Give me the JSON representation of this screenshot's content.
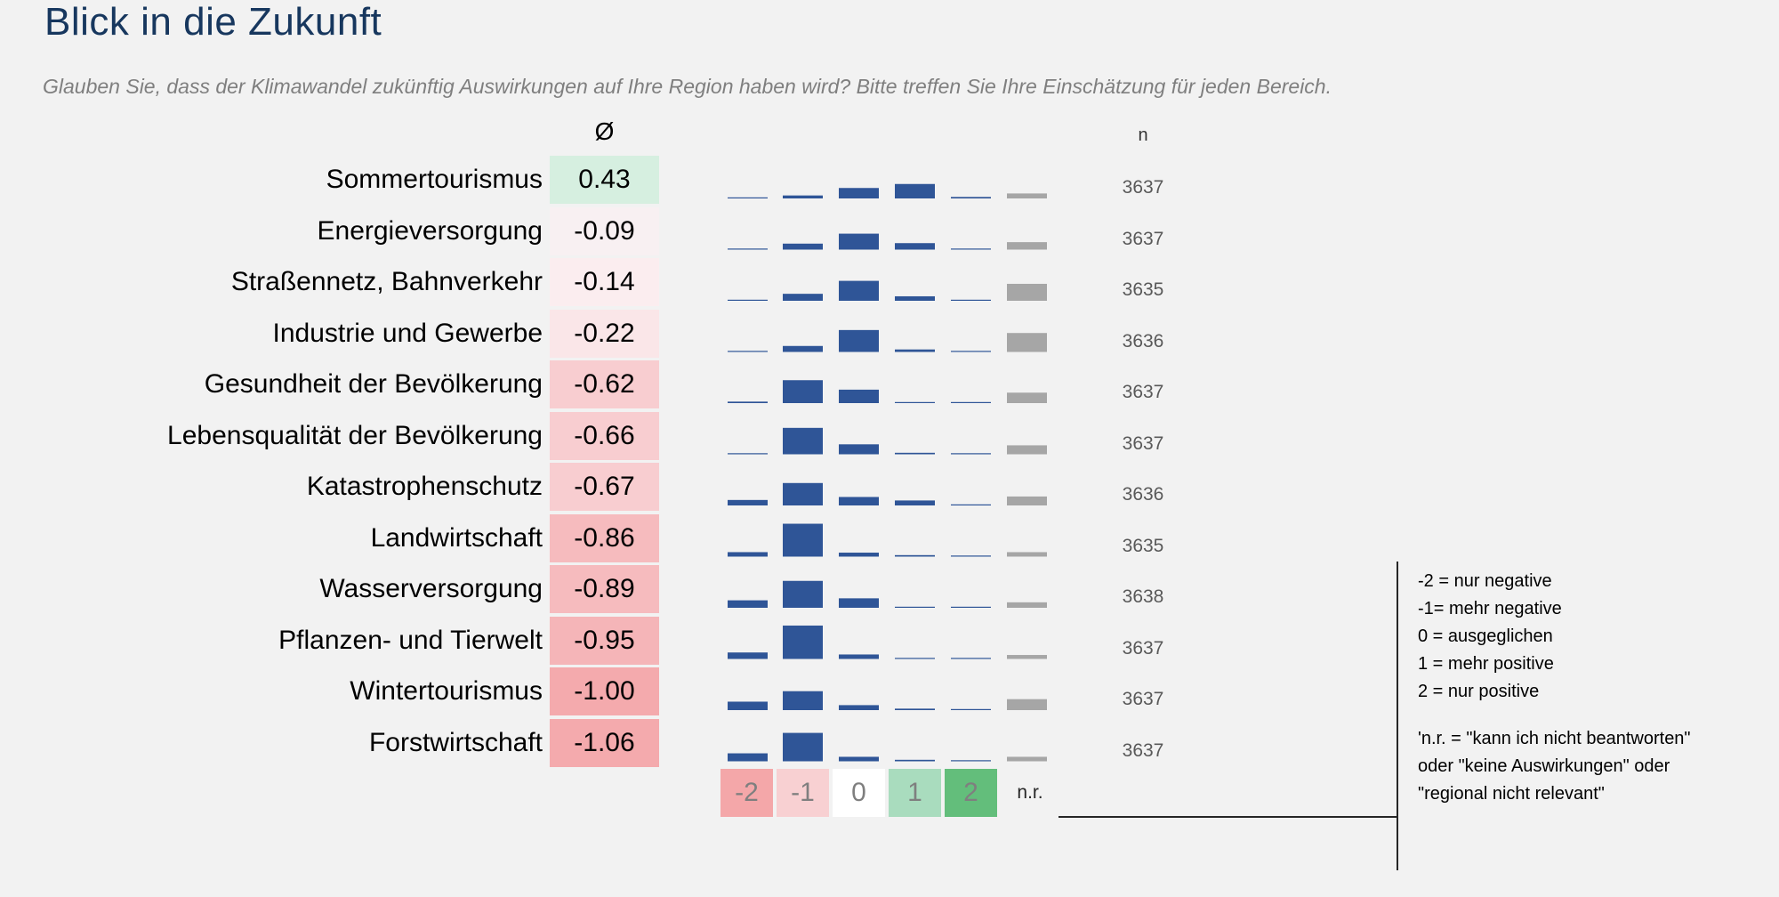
{
  "title": "Blick in die Zukunft",
  "subtitle": "Glauben Sie, dass der Klimawandel zukünftig Auswirkungen auf Ihre Region haben wird? Bitte treffen Sie Ihre Einschätzung für jeden Bereich.",
  "avg_header": "Ø",
  "n_header": "n",
  "colors": {
    "bar_blue": "#2f5597",
    "bar_grey": "#a6a6a6",
    "title_blue": "#17375e",
    "scale_minus2": "#f4a7a9",
    "scale_minus1": "#f8d0d2",
    "scale_0": "#ffffff",
    "scale_1": "#a9dcbe",
    "scale_2": "#63be7b"
  },
  "scale": {
    "labels": [
      "-2",
      "-1",
      "0",
      "1",
      "2"
    ],
    "nr_label": "n.r."
  },
  "legend": {
    "lines": [
      "-2 = nur negative",
      "-1= mehr negative",
      "0 = ausgeglichen",
      "1 = mehr positive",
      "2 = nur positive"
    ],
    "note_lines": [
      "'n.r. = \"kann ich nicht beantworten\"",
      "oder \"keine Auswirkungen\" oder",
      "\"regional nicht relevant\""
    ]
  },
  "chart_data": {
    "type": "bar",
    "series_categories": [
      "-2",
      "-1",
      "0",
      "1",
      "2",
      "n.r."
    ],
    "rows": [
      {
        "label": "Sommertourismus",
        "avg": "0.43",
        "avg_color": "#d6efe0",
        "n": "3637",
        "values": [
          1,
          6,
          21,
          29,
          3,
          10
        ]
      },
      {
        "label": "Energieversorgung",
        "avg": "-0.09",
        "avg_color": "#f8f0f2",
        "n": "3637",
        "values": [
          2,
          12,
          32,
          13,
          1,
          15
        ]
      },
      {
        "label": "Straßennetz, Bahnverkehr",
        "avg": "-0.14",
        "avg_color": "#fbedef",
        "n": "3635",
        "values": [
          2,
          14,
          40,
          9,
          1,
          34
        ]
      },
      {
        "label": "Industrie und Gewerbe",
        "avg": "-0.22",
        "avg_color": "#fae6e8",
        "n": "3636",
        "values": [
          1,
          12,
          44,
          5,
          1,
          38
        ]
      },
      {
        "label": "Gesundheit der Bevölkerung",
        "avg": "-0.62",
        "avg_color": "#f8cdd0",
        "n": "3637",
        "values": [
          3,
          46,
          27,
          2,
          1,
          21
        ]
      },
      {
        "label": "Lebensqualität der Bevölkerung",
        "avg": "-0.66",
        "avg_color": "#f8cdd0",
        "n": "3637",
        "values": [
          2,
          53,
          20,
          3,
          1,
          18
        ]
      },
      {
        "label": "Katastrophenschutz",
        "avg": "-0.67",
        "avg_color": "#f8cdd0",
        "n": "3636",
        "values": [
          11,
          45,
          17,
          10,
          1,
          18
        ]
      },
      {
        "label": "Landwirtschaft",
        "avg": "-0.86",
        "avg_color": "#f6bbbe",
        "n": "3635",
        "values": [
          9,
          66,
          8,
          3,
          1,
          9
        ]
      },
      {
        "label": "Wasserversorgung",
        "avg": "-0.89",
        "avg_color": "#f6bbbe",
        "n": "3638",
        "values": [
          15,
          54,
          19,
          2,
          1,
          11
        ]
      },
      {
        "label": "Pflanzen- und Tierwelt",
        "avg": "-0.95",
        "avg_color": "#f5b5b8",
        "n": "3637",
        "values": [
          13,
          67,
          9,
          2,
          1,
          8
        ]
      },
      {
        "label": "Wintertourismus",
        "avg": "-1.00",
        "avg_color": "#f4aaad",
        "n": "3637",
        "values": [
          17,
          38,
          10,
          3,
          1,
          22
        ]
      },
      {
        "label": "Forstwirtschaft",
        "avg": "-1.06",
        "avg_color": "#f4aaad",
        "n": "3637",
        "values": [
          16,
          57,
          9,
          3,
          1,
          9
        ]
      }
    ]
  }
}
